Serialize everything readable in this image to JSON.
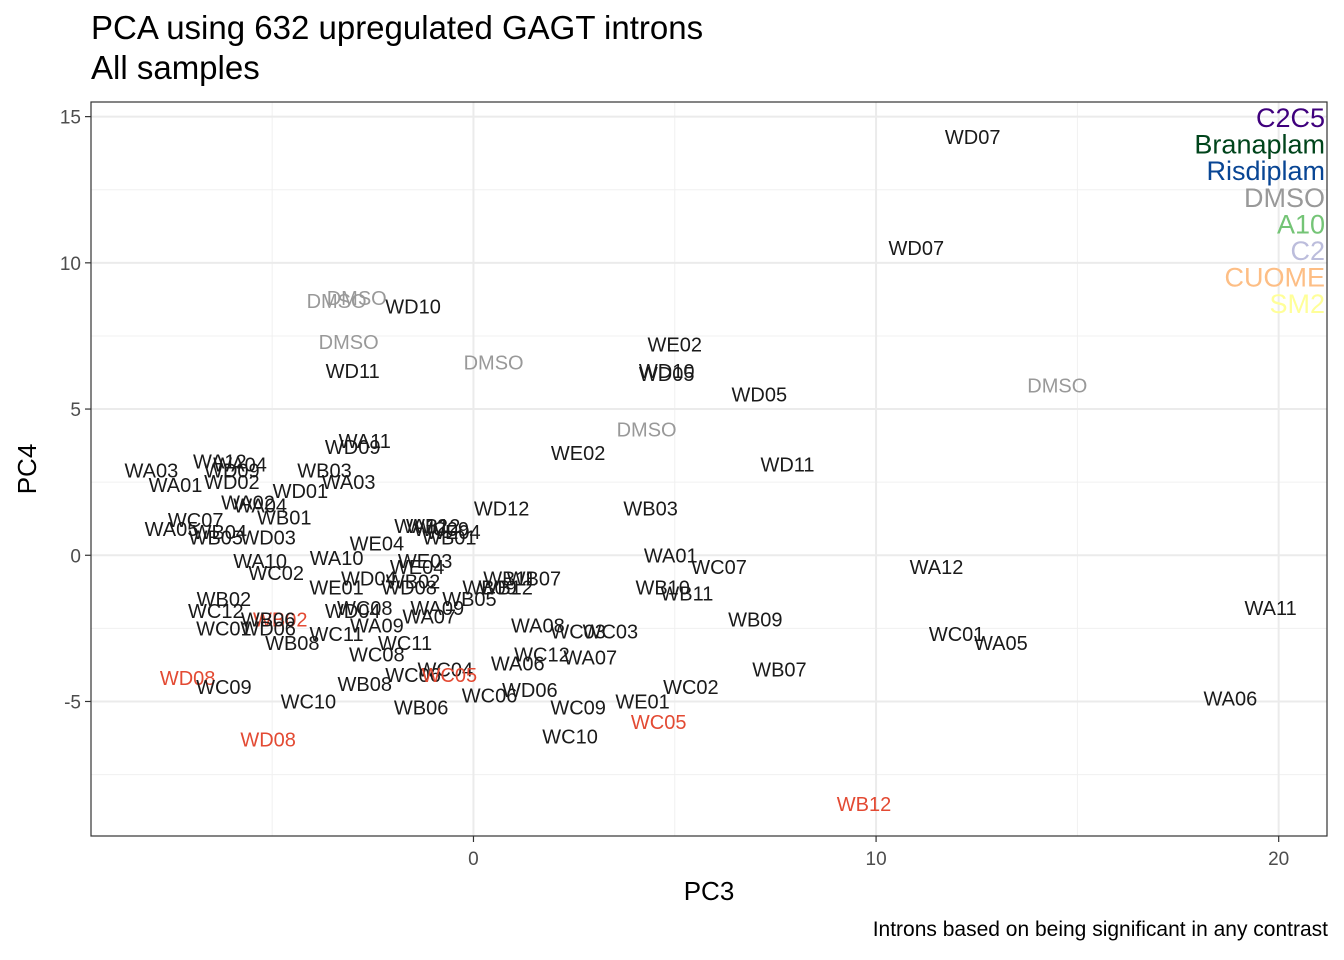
{
  "header": {
    "title": "PCA using 632 upregulated GAGT introns",
    "subtitle": "All samples",
    "caption": "Introns based on being significant in any contrast"
  },
  "colors": {
    "default": "#1a1a1a",
    "DMSO": "#999999",
    "highlight": "#e34a33"
  },
  "legend": [
    {
      "label": "C2C5",
      "color": "#3f007d"
    },
    {
      "label": "Branaplam",
      "color": "#00441b"
    },
    {
      "label": "Risdiplam",
      "color": "#084594"
    },
    {
      "label": "DMSO",
      "color": "#999999"
    },
    {
      "label": "A10",
      "color": "#74c476"
    },
    {
      "label": "C2",
      "color": "#bcbddc"
    },
    {
      "label": "CUOME",
      "color": "#fdbe85"
    },
    {
      "label": "SM2",
      "color": "#ffff99"
    }
  ],
  "chart_data": {
    "type": "scatter",
    "xlabel": "PC3",
    "ylabel": "PC4",
    "xlim": [
      -9.5,
      21.2
    ],
    "ylim": [
      -9.6,
      15.5
    ],
    "xticks": [
      0,
      10,
      20
    ],
    "yticks": [
      -5,
      0,
      5,
      10,
      15
    ],
    "grid": true,
    "legend_position": "top-right",
    "points": [
      {
        "label": "WD07",
        "x": 12.4,
        "y": 14.3,
        "c": "default"
      },
      {
        "label": "WD07",
        "x": 11.0,
        "y": 10.5,
        "c": "default"
      },
      {
        "label": "DMSO",
        "x": -3.4,
        "y": 8.7,
        "c": "DMSO"
      },
      {
        "label": "DMSO",
        "x": -2.9,
        "y": 8.8,
        "c": "DMSO"
      },
      {
        "label": "WD10",
        "x": -1.5,
        "y": 8.5,
        "c": "default"
      },
      {
        "label": "DMSO",
        "x": -3.1,
        "y": 7.3,
        "c": "DMSO"
      },
      {
        "label": "WD11",
        "x": -3.0,
        "y": 6.3,
        "c": "default"
      },
      {
        "label": "DMSO",
        "x": 0.5,
        "y": 6.6,
        "c": "DMSO"
      },
      {
        "label": "WE02",
        "x": 5.0,
        "y": 7.2,
        "c": "default"
      },
      {
        "label": "WD10",
        "x": 4.8,
        "y": 6.3,
        "c": "default"
      },
      {
        "label": "WD05",
        "x": 4.8,
        "y": 6.2,
        "c": "default"
      },
      {
        "label": "WD05",
        "x": 7.1,
        "y": 5.5,
        "c": "default"
      },
      {
        "label": "DMSO",
        "x": 14.5,
        "y": 5.8,
        "c": "DMSO"
      },
      {
        "label": "DMSO",
        "x": 4.3,
        "y": 4.3,
        "c": "DMSO"
      },
      {
        "label": "WA11",
        "x": -2.7,
        "y": 3.9,
        "c": "default"
      },
      {
        "label": "WD09",
        "x": -3.0,
        "y": 3.7,
        "c": "default"
      },
      {
        "label": "WE02",
        "x": 2.6,
        "y": 3.5,
        "c": "default"
      },
      {
        "label": "WD11",
        "x": 7.8,
        "y": 3.1,
        "c": "default"
      },
      {
        "label": "WA03",
        "x": -8.0,
        "y": 2.9,
        "c": "default"
      },
      {
        "label": "WA12",
        "x": -6.3,
        "y": 3.2,
        "c": "default"
      },
      {
        "label": "WA04",
        "x": -5.8,
        "y": 3.1,
        "c": "default"
      },
      {
        "label": "WD09",
        "x": -6.0,
        "y": 2.9,
        "c": "default"
      },
      {
        "label": "WD02",
        "x": -6.0,
        "y": 2.5,
        "c": "default"
      },
      {
        "label": "WB03",
        "x": -3.7,
        "y": 2.9,
        "c": "default"
      },
      {
        "label": "WA03",
        "x": -3.1,
        "y": 2.5,
        "c": "default"
      },
      {
        "label": "WA01",
        "x": -7.4,
        "y": 2.4,
        "c": "default"
      },
      {
        "label": "WD01",
        "x": -4.3,
        "y": 2.2,
        "c": "default"
      },
      {
        "label": "WA02",
        "x": -5.6,
        "y": 1.8,
        "c": "default"
      },
      {
        "label": "WA04",
        "x": -5.3,
        "y": 1.7,
        "c": "default"
      },
      {
        "label": "WB01",
        "x": -4.7,
        "y": 1.3,
        "c": "default"
      },
      {
        "label": "WD12",
        "x": 0.7,
        "y": 1.6,
        "c": "default"
      },
      {
        "label": "WB03",
        "x": 4.4,
        "y": 1.6,
        "c": "default"
      },
      {
        "label": "WC07",
        "x": -6.9,
        "y": 1.2,
        "c": "default"
      },
      {
        "label": "WA05",
        "x": -7.5,
        "y": 0.9,
        "c": "default"
      },
      {
        "label": "WB04",
        "x": -6.3,
        "y": 0.8,
        "c": "default"
      },
      {
        "label": "WB05",
        "x": -6.4,
        "y": 0.6,
        "c": "default"
      },
      {
        "label": "WD03",
        "x": -5.1,
        "y": 0.6,
        "c": "default"
      },
      {
        "label": "WA12",
        "x": -1.3,
        "y": 1.0,
        "c": "default"
      },
      {
        "label": "WB12",
        "x": -1.0,
        "y": 1.0,
        "c": "default"
      },
      {
        "label": "WC09",
        "x": -0.8,
        "y": 0.9,
        "c": "default"
      },
      {
        "label": "WE04",
        "x": -0.5,
        "y": 0.8,
        "c": "default"
      },
      {
        "label": "WB01",
        "x": -0.6,
        "y": 0.6,
        "c": "default"
      },
      {
        "label": "WE04",
        "x": -2.4,
        "y": 0.4,
        "c": "default"
      },
      {
        "label": "WA01",
        "x": 4.9,
        "y": 0.0,
        "c": "default"
      },
      {
        "label": "WA10",
        "x": -5.3,
        "y": -0.2,
        "c": "default"
      },
      {
        "label": "WA10",
        "x": -3.4,
        "y": -0.1,
        "c": "default"
      },
      {
        "label": "WE03",
        "x": -1.2,
        "y": -0.2,
        "c": "default"
      },
      {
        "label": "WE04",
        "x": -1.4,
        "y": -0.4,
        "c": "default"
      },
      {
        "label": "WC07",
        "x": 6.1,
        "y": -0.4,
        "c": "default"
      },
      {
        "label": "WA12",
        "x": 11.5,
        "y": -0.4,
        "c": "default"
      },
      {
        "label": "WC02",
        "x": -4.9,
        "y": -0.6,
        "c": "default"
      },
      {
        "label": "WD04",
        "x": -2.6,
        "y": -0.8,
        "c": "default"
      },
      {
        "label": "WB02",
        "x": -1.5,
        "y": -0.9,
        "c": "default"
      },
      {
        "label": "WE01",
        "x": -3.4,
        "y": -1.1,
        "c": "default"
      },
      {
        "label": "WD08",
        "x": -1.6,
        "y": -1.1,
        "c": "default"
      },
      {
        "label": "WB11",
        "x": 0.9,
        "y": -0.8,
        "c": "default"
      },
      {
        "label": "WB07",
        "x": 1.5,
        "y": -0.8,
        "c": "default"
      },
      {
        "label": "WB09",
        "x": 0.4,
        "y": -1.1,
        "c": "default"
      },
      {
        "label": "WB12",
        "x": 0.8,
        "y": -1.1,
        "c": "default"
      },
      {
        "label": "WB05",
        "x": -0.1,
        "y": -1.5,
        "c": "default"
      },
      {
        "label": "WB10",
        "x": 4.7,
        "y": -1.1,
        "c": "default"
      },
      {
        "label": "WB11",
        "x": 5.3,
        "y": -1.3,
        "c": "default"
      },
      {
        "label": "WA11",
        "x": 19.8,
        "y": -1.8,
        "c": "default"
      },
      {
        "label": "WB02",
        "x": -6.2,
        "y": -1.5,
        "c": "default"
      },
      {
        "label": "WC12",
        "x": -6.4,
        "y": -1.9,
        "c": "default"
      },
      {
        "label": "WC08",
        "x": -2.7,
        "y": -1.8,
        "c": "default"
      },
      {
        "label": "WD04",
        "x": -3.0,
        "y": -1.9,
        "c": "default"
      },
      {
        "label": "WA09",
        "x": -0.9,
        "y": -1.8,
        "c": "default"
      },
      {
        "label": "WA07",
        "x": -1.1,
        "y": -2.1,
        "c": "default"
      },
      {
        "label": "WB02",
        "x": -4.8,
        "y": -2.2,
        "c": "highlight"
      },
      {
        "label": "WB06",
        "x": -5.1,
        "y": -2.2,
        "c": "default"
      },
      {
        "label": "WC01",
        "x": -6.2,
        "y": -2.5,
        "c": "default"
      },
      {
        "label": "WD06",
        "x": -5.1,
        "y": -2.5,
        "c": "default"
      },
      {
        "label": "WA09",
        "x": -2.4,
        "y": -2.4,
        "c": "default"
      },
      {
        "label": "WA08",
        "x": 1.6,
        "y": -2.4,
        "c": "default"
      },
      {
        "label": "WC03",
        "x": 2.6,
        "y": -2.6,
        "c": "default"
      },
      {
        "label": "WC03",
        "x": 3.4,
        "y": -2.6,
        "c": "default"
      },
      {
        "label": "WB09",
        "x": 7.0,
        "y": -2.2,
        "c": "default"
      },
      {
        "label": "WC11",
        "x": -3.4,
        "y": -2.7,
        "c": "default"
      },
      {
        "label": "WC01",
        "x": 12.0,
        "y": -2.7,
        "c": "default"
      },
      {
        "label": "WB08",
        "x": -4.5,
        "y": -3.0,
        "c": "default"
      },
      {
        "label": "WC11",
        "x": -1.7,
        "y": -3.0,
        "c": "default"
      },
      {
        "label": "WA05",
        "x": 13.1,
        "y": -3.0,
        "c": "default"
      },
      {
        "label": "WC08",
        "x": -2.4,
        "y": -3.4,
        "c": "default"
      },
      {
        "label": "WC12",
        "x": 1.7,
        "y": -3.4,
        "c": "default"
      },
      {
        "label": "WA07",
        "x": 2.9,
        "y": -3.5,
        "c": "default"
      },
      {
        "label": "WA06",
        "x": 1.1,
        "y": -3.7,
        "c": "default"
      },
      {
        "label": "WC04",
        "x": -0.7,
        "y": -3.9,
        "c": "default"
      },
      {
        "label": "WC06",
        "x": -1.5,
        "y": -4.1,
        "c": "default"
      },
      {
        "label": "WC05",
        "x": -0.6,
        "y": -4.1,
        "c": "highlight"
      },
      {
        "label": "WB07",
        "x": 7.6,
        "y": -3.9,
        "c": "default"
      },
      {
        "label": "WD08",
        "x": -7.1,
        "y": -4.2,
        "c": "highlight"
      },
      {
        "label": "WC09",
        "x": -6.2,
        "y": -4.5,
        "c": "default"
      },
      {
        "label": "WB08",
        "x": -2.7,
        "y": -4.4,
        "c": "default"
      },
      {
        "label": "WC02",
        "x": 5.4,
        "y": -4.5,
        "c": "default"
      },
      {
        "label": "WD06",
        "x": 1.4,
        "y": -4.6,
        "c": "default"
      },
      {
        "label": "WC06",
        "x": 0.4,
        "y": -4.8,
        "c": "default"
      },
      {
        "label": "WE01",
        "x": 4.2,
        "y": -5.0,
        "c": "default"
      },
      {
        "label": "WC10",
        "x": -4.1,
        "y": -5.0,
        "c": "default"
      },
      {
        "label": "WC09",
        "x": 2.6,
        "y": -5.2,
        "c": "default"
      },
      {
        "label": "WB06",
        "x": -1.3,
        "y": -5.2,
        "c": "default"
      },
      {
        "label": "WA06",
        "x": 18.8,
        "y": -4.9,
        "c": "default"
      },
      {
        "label": "WC05",
        "x": 4.6,
        "y": -5.7,
        "c": "highlight"
      },
      {
        "label": "WD08",
        "x": -5.1,
        "y": -6.3,
        "c": "highlight"
      },
      {
        "label": "WC10",
        "x": 2.4,
        "y": -6.2,
        "c": "default"
      },
      {
        "label": "WB12",
        "x": 9.7,
        "y": -8.5,
        "c": "highlight"
      }
    ]
  }
}
